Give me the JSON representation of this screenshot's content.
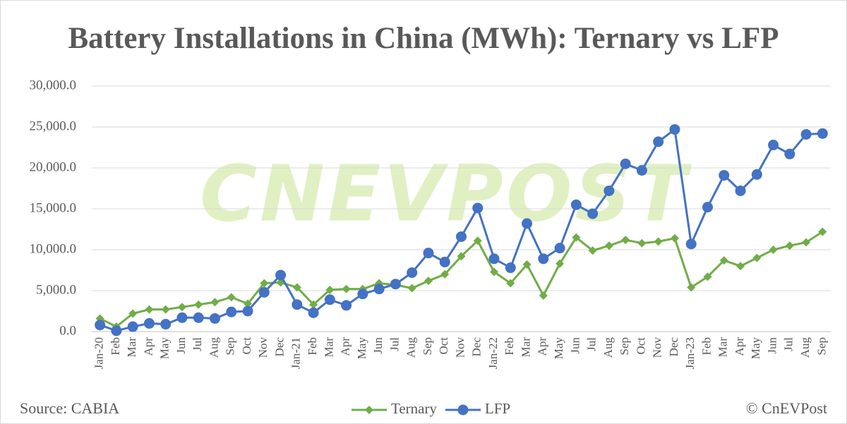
{
  "chart_data": {
    "type": "line",
    "title": "Battery Installations in China (MWh): Ternary vs LFP",
    "watermark": "CNEVPOST",
    "source": "Source: CABIA",
    "copyright": "© CnEVPost",
    "categories": [
      "Jan-20",
      "Feb",
      "Mar",
      "Apr",
      "May",
      "Jun",
      "Jul",
      "Aug",
      "Sep",
      "Oct",
      "Nov",
      "Dec",
      "Jan-21",
      "Feb",
      "Mar",
      "Apr",
      "May",
      "Jun",
      "Jul",
      "Aug",
      "Sep",
      "Oct",
      "Nov",
      "Dec",
      "Jan-22",
      "Feb",
      "Mar",
      "Apr",
      "May",
      "Jun",
      "Jul",
      "Aug",
      "Sep",
      "Oct",
      "Nov",
      "Dec",
      "Jan-23",
      "Feb",
      "Mar",
      "Apr",
      "May",
      "Jun",
      "Jul",
      "Aug",
      "Sep"
    ],
    "series": [
      {
        "name": "Ternary",
        "color": "#70ad47",
        "marker": "diamond",
        "values": [
          1600,
          600,
          2200,
          2700,
          2700,
          3000,
          3300,
          3600,
          4200,
          3400,
          5900,
          6000,
          5400,
          3300,
          5100,
          5200,
          5200,
          5900,
          5700,
          5300,
          6200,
          7000,
          9200,
          11100,
          7300,
          5900,
          8200,
          4400,
          8300,
          11500,
          9900,
          10500,
          11200,
          10800,
          11000,
          11400,
          5400,
          6700,
          8700,
          8000,
          9000,
          10000,
          10500,
          10900,
          12200
        ]
      },
      {
        "name": "LFP",
        "color": "#4472c4",
        "marker": "circle",
        "values": [
          800,
          100,
          600,
          1000,
          900,
          1700,
          1700,
          1600,
          2400,
          2500,
          4800,
          6900,
          3300,
          2300,
          3900,
          3200,
          4600,
          5200,
          5800,
          7200,
          9600,
          8500,
          11600,
          15100,
          8900,
          7800,
          13200,
          8900,
          10200,
          15500,
          14400,
          17200,
          20500,
          19700,
          23200,
          24700,
          10700,
          15200,
          19100,
          17200,
          19200,
          22800,
          21700,
          24100,
          24200
        ]
      }
    ],
    "ylim": [
      0,
      30000
    ],
    "yticks": [
      {
        "value": 0,
        "label": "0.0"
      },
      {
        "value": 5000,
        "label": "5,000.0"
      },
      {
        "value": 10000,
        "label": "10,000.0"
      },
      {
        "value": 15000,
        "label": "15,000.0"
      },
      {
        "value": 20000,
        "label": "20,000.0"
      },
      {
        "value": 25000,
        "label": "25,000.0"
      },
      {
        "value": 30000,
        "label": "30,000.0"
      }
    ],
    "grid": true,
    "legend": "bottom"
  }
}
